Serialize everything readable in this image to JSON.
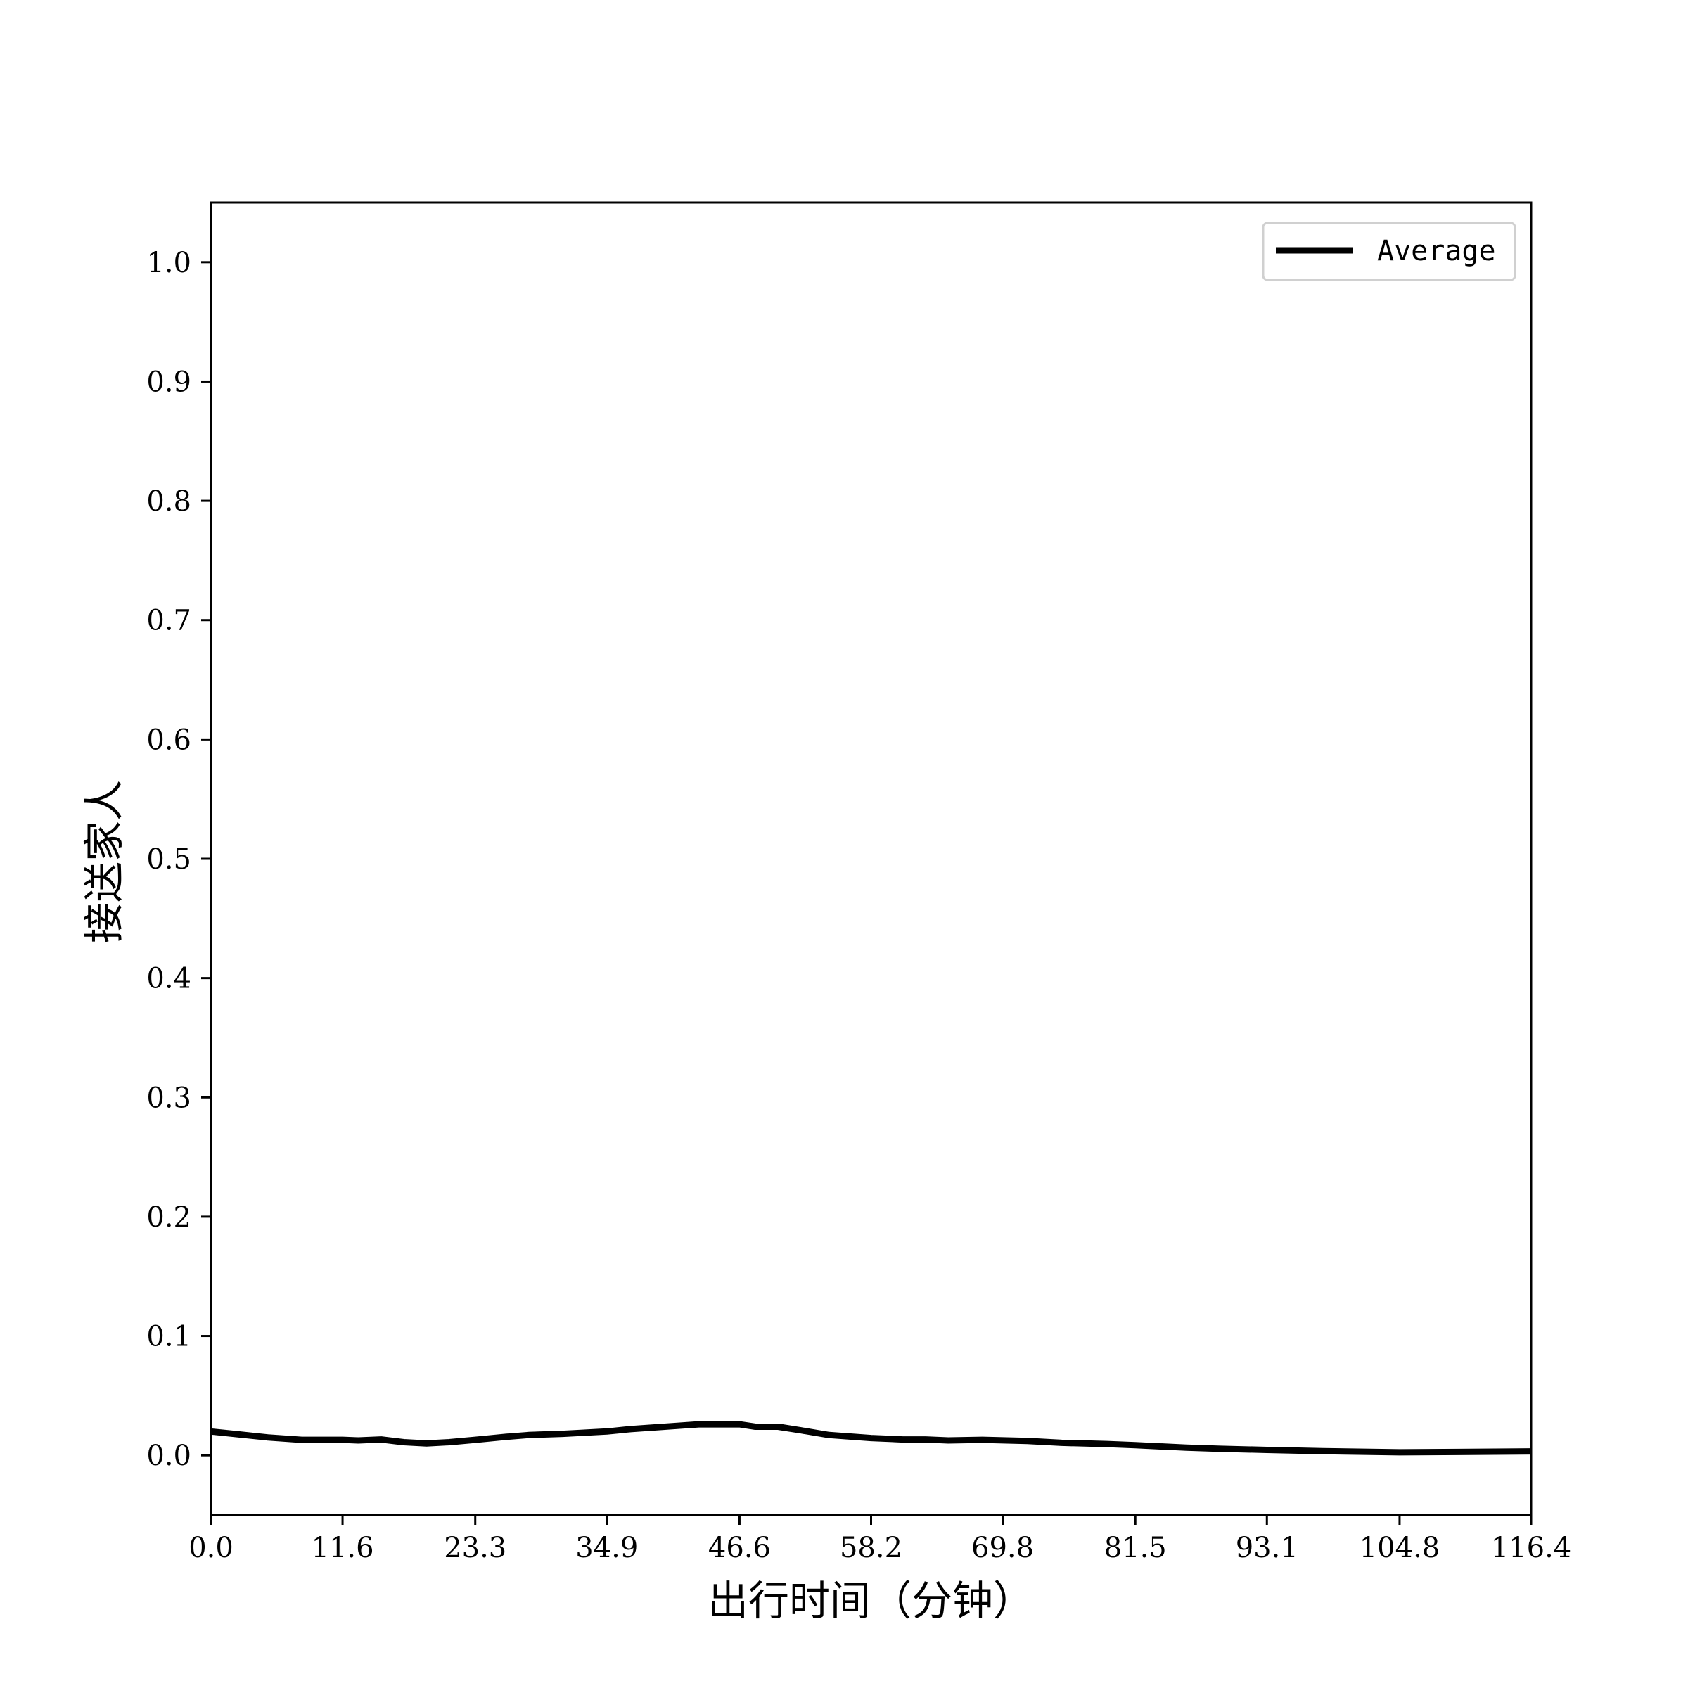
{
  "chart_data": {
    "type": "line",
    "xlabel": "出行时间（分钟）",
    "ylabel": "接送家人",
    "xlim": [
      0.0,
      116.4
    ],
    "ylim": [
      -0.05,
      1.05
    ],
    "x_ticks": [
      "0.0",
      "11.6",
      "23.3",
      "34.9",
      "46.6",
      "58.2",
      "69.8",
      "81.5",
      "93.1",
      "104.8",
      "116.4"
    ],
    "y_ticks": [
      "0.0",
      "0.1",
      "0.2",
      "0.3",
      "0.4",
      "0.5",
      "0.6",
      "0.7",
      "0.8",
      "0.9",
      "1.0"
    ],
    "legend": {
      "position": "upper-right",
      "label": "Average"
    },
    "grid": false,
    "line_color": "#000000",
    "series": [
      {
        "name": "Average",
        "x": [
          0,
          2,
          5,
          8,
          11.6,
          13,
          15,
          17,
          19,
          21,
          23.3,
          26,
          28,
          31,
          34.9,
          37,
          40,
          43,
          46.6,
          48,
          50,
          52,
          54.5,
          58.2,
          61,
          63,
          65,
          68,
          72,
          75,
          79,
          81.5,
          86,
          89,
          93.1,
          98,
          104.8,
          110,
          116.4
        ],
        "y": [
          0.02,
          0.018,
          0.015,
          0.013,
          0.013,
          0.0125,
          0.0133,
          0.011,
          0.01,
          0.011,
          0.013,
          0.0155,
          0.017,
          0.018,
          0.02,
          0.022,
          0.024,
          0.026,
          0.026,
          0.024,
          0.024,
          0.021,
          0.017,
          0.0145,
          0.0133,
          0.0133,
          0.0125,
          0.013,
          0.012,
          0.0105,
          0.0095,
          0.0085,
          0.0065,
          0.0055,
          0.0045,
          0.0035,
          0.0025,
          0.0028,
          0.0033
        ]
      }
    ]
  }
}
